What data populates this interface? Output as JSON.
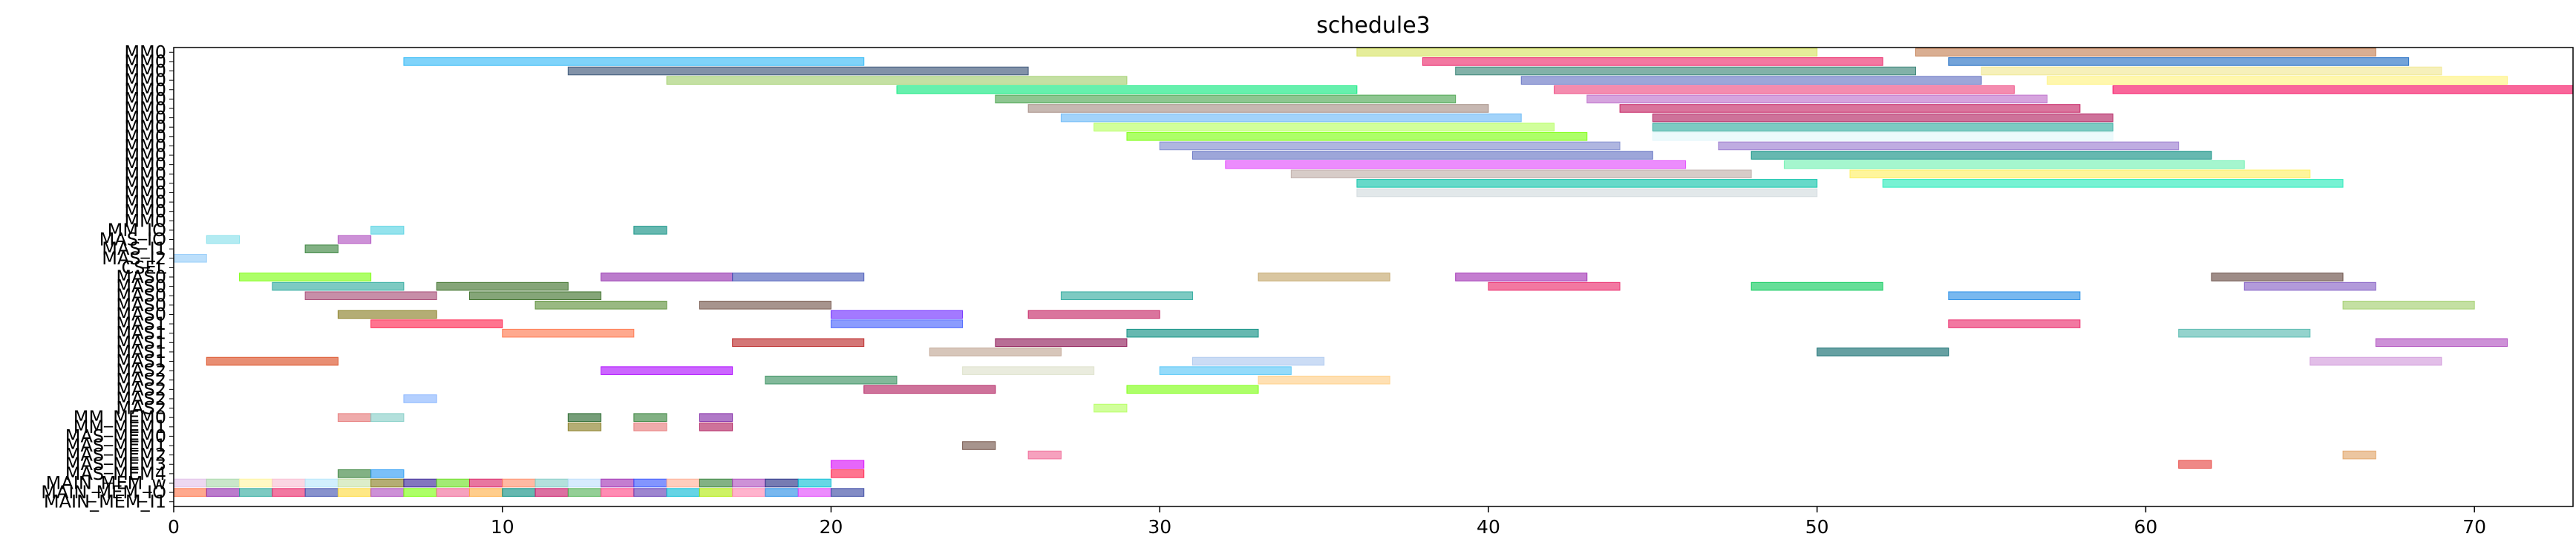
{
  "chart_data": {
    "type": "gantt",
    "title": "schedule3",
    "xlabel": "",
    "ylabel": "",
    "xlim": [
      0,
      73
    ],
    "x_ticks": [
      0,
      10,
      20,
      30,
      40,
      50,
      60,
      70
    ],
    "grid": false,
    "rows": [
      "MM0",
      "MM0",
      "MM0",
      "MM0",
      "MM0",
      "MM0",
      "MM0",
      "MM0",
      "MM0",
      "MM0",
      "MM0",
      "MM0",
      "MM0",
      "MM0",
      "MM0",
      "MM0",
      "MM0",
      "MM0",
      "MM0",
      "MM_IO",
      "MAS_IO",
      "MAS_I1",
      "MAS_I2",
      "CSEL",
      "MAS0",
      "MAS0",
      "MAS0",
      "MAS0",
      "MAS0",
      "MAS1",
      "MAS1",
      "MAS1",
      "MAS1",
      "MAS1",
      "MAS2",
      "MAS2",
      "MAS2",
      "MAS2",
      "MAS2",
      "MM_MEM0",
      "MM_MEM1",
      "MAS_MEM0",
      "MAS_MEM1",
      "MAS_MEM2",
      "MAS_MEM3",
      "MAS_MEM4",
      "MAIN_MEM_w",
      "MAIN_MEM_IO",
      "MAIN_MEM_I1"
    ],
    "tasks": [
      {
        "row": 0,
        "start": 36,
        "end": 50,
        "color": "#d4e157"
      },
      {
        "row": 0,
        "start": 53,
        "end": 67,
        "color": "#c0784a"
      },
      {
        "row": 1,
        "start": 7,
        "end": 21,
        "color": "#29b6f6"
      },
      {
        "row": 1,
        "start": 38,
        "end": 52,
        "color": "#e91e63"
      },
      {
        "row": 1,
        "start": 54,
        "end": 68,
        "color": "#1565c0"
      },
      {
        "row": 2,
        "start": 12,
        "end": 26,
        "color": "#2e4a6e"
      },
      {
        "row": 2,
        "start": 39,
        "end": 53,
        "color": "#2e7d6e"
      },
      {
        "row": 2,
        "start": 55,
        "end": 69,
        "color": "#f0e68c"
      },
      {
        "row": 3,
        "start": 15,
        "end": 29,
        "color": "#9ccc65"
      },
      {
        "row": 3,
        "start": 41,
        "end": 55,
        "color": "#5c6bc0"
      },
      {
        "row": 3,
        "start": 57,
        "end": 71,
        "color": "#fff176"
      },
      {
        "row": 4,
        "start": 22,
        "end": 36,
        "color": "#00e676"
      },
      {
        "row": 4,
        "start": 42,
        "end": 56,
        "color": "#ec407a"
      },
      {
        "row": 4,
        "start": 59,
        "end": 73,
        "color": "#f50057"
      },
      {
        "row": 5,
        "start": 25,
        "end": 39,
        "color": "#43a047"
      },
      {
        "row": 5,
        "start": 43,
        "end": 57,
        "color": "#ba68c8"
      },
      {
        "row": 6,
        "start": 26,
        "end": 40,
        "color": "#a1887f"
      },
      {
        "row": 6,
        "start": 44,
        "end": 58,
        "color": "#c2185b"
      },
      {
        "row": 7,
        "start": 27,
        "end": 41,
        "color": "#64b5f6"
      },
      {
        "row": 7,
        "start": 45,
        "end": 59,
        "color": "#ad1457"
      },
      {
        "row": 8,
        "start": 28,
        "end": 42,
        "color": "#b2ff59"
      },
      {
        "row": 8,
        "start": 45,
        "end": 59,
        "color": "#26a69a"
      },
      {
        "row": 9,
        "start": 29,
        "end": 43,
        "color": "#76ff03"
      },
      {
        "row": 9,
        "start": 45,
        "end": 59,
        "color": "#e0f7fa"
      },
      {
        "row": 10,
        "start": 30,
        "end": 44,
        "color": "#7986cb"
      },
      {
        "row": 10,
        "start": 47,
        "end": 61,
        "color": "#9575cd"
      },
      {
        "row": 11,
        "start": 31,
        "end": 45,
        "color": "#5c6bc0"
      },
      {
        "row": 11,
        "start": 48,
        "end": 62,
        "color": "#00897b"
      },
      {
        "row": 12,
        "start": 32,
        "end": 46,
        "color": "#e040fb"
      },
      {
        "row": 12,
        "start": 49,
        "end": 63,
        "color": "#69f0ae"
      },
      {
        "row": 13,
        "start": 34,
        "end": 48,
        "color": "#bcaaa4"
      },
      {
        "row": 13,
        "start": 51,
        "end": 65,
        "color": "#ffee58"
      },
      {
        "row": 14,
        "start": 36,
        "end": 50,
        "color": "#00bfa5"
      },
      {
        "row": 14,
        "start": 52,
        "end": 66,
        "color": "#1de9b6"
      },
      {
        "row": 15,
        "start": 36,
        "end": 50,
        "color": "#cfd8dc"
      },
      {
        "row": 19,
        "start": 6,
        "end": 7,
        "color": "#4dd0e1"
      },
      {
        "row": 19,
        "start": 14,
        "end": 15,
        "color": "#00897b"
      },
      {
        "row": 20,
        "start": 1,
        "end": 2,
        "color": "#80deea"
      },
      {
        "row": 20,
        "start": 5,
        "end": 6,
        "color": "#ab47bc"
      },
      {
        "row": 21,
        "start": 4,
        "end": 5,
        "color": "#2e7d32"
      },
      {
        "row": 22,
        "start": 0,
        "end": 1,
        "color": "#90caf9"
      },
      {
        "row": 24,
        "start": 2,
        "end": 6,
        "color": "#76ff03"
      },
      {
        "row": 24,
        "start": 13,
        "end": 17,
        "color": "#8e24aa"
      },
      {
        "row": 24,
        "start": 17,
        "end": 21,
        "color": "#3f51b5"
      },
      {
        "row": 24,
        "start": 33,
        "end": 37,
        "color": "#c0a060"
      },
      {
        "row": 24,
        "start": 39,
        "end": 43,
        "color": "#9c27b0"
      },
      {
        "row": 24,
        "start": 62,
        "end": 66,
        "color": "#5d4037"
      },
      {
        "row": 25,
        "start": 3,
        "end": 7,
        "color": "#26a69a"
      },
      {
        "row": 25,
        "start": 8,
        "end": 12,
        "color": "#33691e"
      },
      {
        "row": 25,
        "start": 40,
        "end": 44,
        "color": "#e91e63"
      },
      {
        "row": 25,
        "start": 48,
        "end": 52,
        "color": "#00c853"
      },
      {
        "row": 25,
        "start": 63,
        "end": 67,
        "color": "#7e57c2"
      },
      {
        "row": 26,
        "start": 4,
        "end": 8,
        "color": "#a1426e"
      },
      {
        "row": 26,
        "start": 9,
        "end": 13,
        "color": "#33691e"
      },
      {
        "row": 26,
        "start": 27,
        "end": 31,
        "color": "#26a69a"
      },
      {
        "row": 26,
        "start": 54,
        "end": 58,
        "color": "#1e88e5"
      },
      {
        "row": 27,
        "start": 11,
        "end": 15,
        "color": "#558b2f"
      },
      {
        "row": 27,
        "start": 16,
        "end": 20,
        "color": "#6d4c41"
      },
      {
        "row": 27,
        "start": 66,
        "end": 70,
        "color": "#9ccc65"
      },
      {
        "row": 28,
        "start": 5,
        "end": 8,
        "color": "#827717"
      },
      {
        "row": 28,
        "start": 20,
        "end": 24,
        "color": "#651fff"
      },
      {
        "row": 28,
        "start": 26,
        "end": 30,
        "color": "#c2185b"
      },
      {
        "row": 29,
        "start": 6,
        "end": 10,
        "color": "#ff1744"
      },
      {
        "row": 29,
        "start": 20,
        "end": 24,
        "color": "#3d5afe"
      },
      {
        "row": 29,
        "start": 54,
        "end": 58,
        "color": "#e91e63"
      },
      {
        "row": 30,
        "start": 10,
        "end": 14,
        "color": "#ff7043"
      },
      {
        "row": 30,
        "start": 29,
        "end": 33,
        "color": "#00897b"
      },
      {
        "row": 30,
        "start": 61,
        "end": 65,
        "color": "#4db6ac"
      },
      {
        "row": 31,
        "start": 17,
        "end": 21,
        "color": "#b71c1c"
      },
      {
        "row": 31,
        "start": 25,
        "end": 29,
        "color": "#880e4f"
      },
      {
        "row": 31,
        "start": 67,
        "end": 71,
        "color": "#ab47bc"
      },
      {
        "row": 32,
        "start": 23,
        "end": 27,
        "color": "#bca08c"
      },
      {
        "row": 32,
        "start": 50,
        "end": 54,
        "color": "#006064"
      },
      {
        "row": 33,
        "start": 1,
        "end": 5,
        "color": "#d84315"
      },
      {
        "row": 33,
        "start": 31,
        "end": 35,
        "color": "#a9c5ef"
      },
      {
        "row": 33,
        "start": 65,
        "end": 69,
        "color": "#ce93d8"
      },
      {
        "row": 34,
        "start": 13,
        "end": 17,
        "color": "#aa00ff"
      },
      {
        "row": 34,
        "start": 24,
        "end": 28,
        "color": "#dce0c8"
      },
      {
        "row": 34,
        "start": 30,
        "end": 34,
        "color": "#4fc3f7"
      },
      {
        "row": 35,
        "start": 18,
        "end": 22,
        "color": "#2e8b57"
      },
      {
        "row": 35,
        "start": 33,
        "end": 37,
        "color": "#ffcc80"
      },
      {
        "row": 36,
        "start": 21,
        "end": 25,
        "color": "#ad1457"
      },
      {
        "row": 36,
        "start": 29,
        "end": 33,
        "color": "#76ff03"
      },
      {
        "row": 37,
        "start": 7,
        "end": 8,
        "color": "#82b1ff"
      },
      {
        "row": 38,
        "start": 28,
        "end": 29,
        "color": "#b2ff59"
      },
      {
        "row": 39,
        "start": 5,
        "end": 6,
        "color": "#e57373"
      },
      {
        "row": 39,
        "start": 6,
        "end": 7,
        "color": "#80cbc4"
      },
      {
        "row": 39,
        "start": 12,
        "end": 13,
        "color": "#1b5e20"
      },
      {
        "row": 39,
        "start": 14,
        "end": 15,
        "color": "#2e7d32"
      },
      {
        "row": 39,
        "start": 16,
        "end": 17,
        "color": "#7b1fa2"
      },
      {
        "row": 40,
        "start": 12,
        "end": 13,
        "color": "#827717"
      },
      {
        "row": 40,
        "start": 14,
        "end": 15,
        "color": "#e57373"
      },
      {
        "row": 40,
        "start": 16,
        "end": 17,
        "color": "#ad1457"
      },
      {
        "row": 42,
        "start": 24,
        "end": 25,
        "color": "#6d4c41"
      },
      {
        "row": 43,
        "start": 26,
        "end": 27,
        "color": "#f06292"
      },
      {
        "row": 43,
        "start": 66,
        "end": 67,
        "color": "#e0a060"
      },
      {
        "row": 44,
        "start": 20,
        "end": 21,
        "color": "#d500f9"
      },
      {
        "row": 44,
        "start": 61,
        "end": 62,
        "color": "#e53935"
      },
      {
        "row": 45,
        "start": 5,
        "end": 6,
        "color": "#2e7d32"
      },
      {
        "row": 45,
        "start": 6,
        "end": 7,
        "color": "#2196f3"
      },
      {
        "row": 45,
        "start": 20,
        "end": 21,
        "color": "#ff1744"
      },
      {
        "row": 46,
        "start": 0,
        "end": 1,
        "color": "#e1bee7"
      },
      {
        "row": 46,
        "start": 1,
        "end": 2,
        "color": "#a5d6a7"
      },
      {
        "row": 46,
        "start": 2,
        "end": 3,
        "color": "#fff59d"
      },
      {
        "row": 46,
        "start": 3,
        "end": 4,
        "color": "#f8bbd0"
      },
      {
        "row": 46,
        "start": 4,
        "end": 5,
        "color": "#b3e5fc"
      },
      {
        "row": 46,
        "start": 5,
        "end": 6,
        "color": "#c5e1a5"
      },
      {
        "row": 46,
        "start": 6,
        "end": 7,
        "color": "#827717"
      },
      {
        "row": 46,
        "start": 7,
        "end": 8,
        "color": "#311b92"
      },
      {
        "row": 46,
        "start": 8,
        "end": 9,
        "color": "#64dd17"
      },
      {
        "row": 46,
        "start": 9,
        "end": 10,
        "color": "#d81b60"
      },
      {
        "row": 46,
        "start": 10,
        "end": 11,
        "color": "#ff8a65"
      },
      {
        "row": 46,
        "start": 11,
        "end": 12,
        "color": "#80cbc4"
      },
      {
        "row": 46,
        "start": 12,
        "end": 13,
        "color": "#bbdefb"
      },
      {
        "row": 46,
        "start": 13,
        "end": 14,
        "color": "#9c27b0"
      },
      {
        "row": 46,
        "start": 14,
        "end": 15,
        "color": "#304ffe"
      },
      {
        "row": 46,
        "start": 15,
        "end": 16,
        "color": "#ffab91"
      },
      {
        "row": 46,
        "start": 16,
        "end": 17,
        "color": "#2e7d32"
      },
      {
        "row": 46,
        "start": 17,
        "end": 18,
        "color": "#ab47bc"
      },
      {
        "row": 46,
        "start": 18,
        "end": 19,
        "color": "#1a237e"
      },
      {
        "row": 46,
        "start": 19,
        "end": 20,
        "color": "#00bcd4"
      },
      {
        "row": 47,
        "start": 0,
        "end": 1,
        "color": "#ff7043"
      },
      {
        "row": 47,
        "start": 1,
        "end": 2,
        "color": "#8e24aa"
      },
      {
        "row": 47,
        "start": 2,
        "end": 3,
        "color": "#26a69a"
      },
      {
        "row": 47,
        "start": 3,
        "end": 4,
        "color": "#e91e63"
      },
      {
        "row": 47,
        "start": 4,
        "end": 5,
        "color": "#3949ab"
      },
      {
        "row": 47,
        "start": 5,
        "end": 6,
        "color": "#fdd835"
      },
      {
        "row": 47,
        "start": 6,
        "end": 7,
        "color": "#ab47bc"
      },
      {
        "row": 47,
        "start": 7,
        "end": 8,
        "color": "#76ff03"
      },
      {
        "row": 47,
        "start": 8,
        "end": 9,
        "color": "#f06292"
      },
      {
        "row": 47,
        "start": 9,
        "end": 10,
        "color": "#ffab40"
      },
      {
        "row": 47,
        "start": 10,
        "end": 11,
        "color": "#00897b"
      },
      {
        "row": 47,
        "start": 11,
        "end": 12,
        "color": "#c51162"
      },
      {
        "row": 47,
        "start": 12,
        "end": 13,
        "color": "#4caf50"
      },
      {
        "row": 47,
        "start": 13,
        "end": 14,
        "color": "#ff4081"
      },
      {
        "row": 47,
        "start": 14,
        "end": 15,
        "color": "#5e35b1"
      },
      {
        "row": 47,
        "start": 15,
        "end": 16,
        "color": "#00b8d4"
      },
      {
        "row": 47,
        "start": 16,
        "end": 17,
        "color": "#aeea00"
      },
      {
        "row": 47,
        "start": 17,
        "end": 18,
        "color": "#ff80ab"
      },
      {
        "row": 47,
        "start": 18,
        "end": 19,
        "color": "#1e88e5"
      },
      {
        "row": 47,
        "start": 19,
        "end": 20,
        "color": "#e040fb"
      },
      {
        "row": 47,
        "start": 20,
        "end": 21,
        "color": "#303f9f"
      }
    ]
  }
}
